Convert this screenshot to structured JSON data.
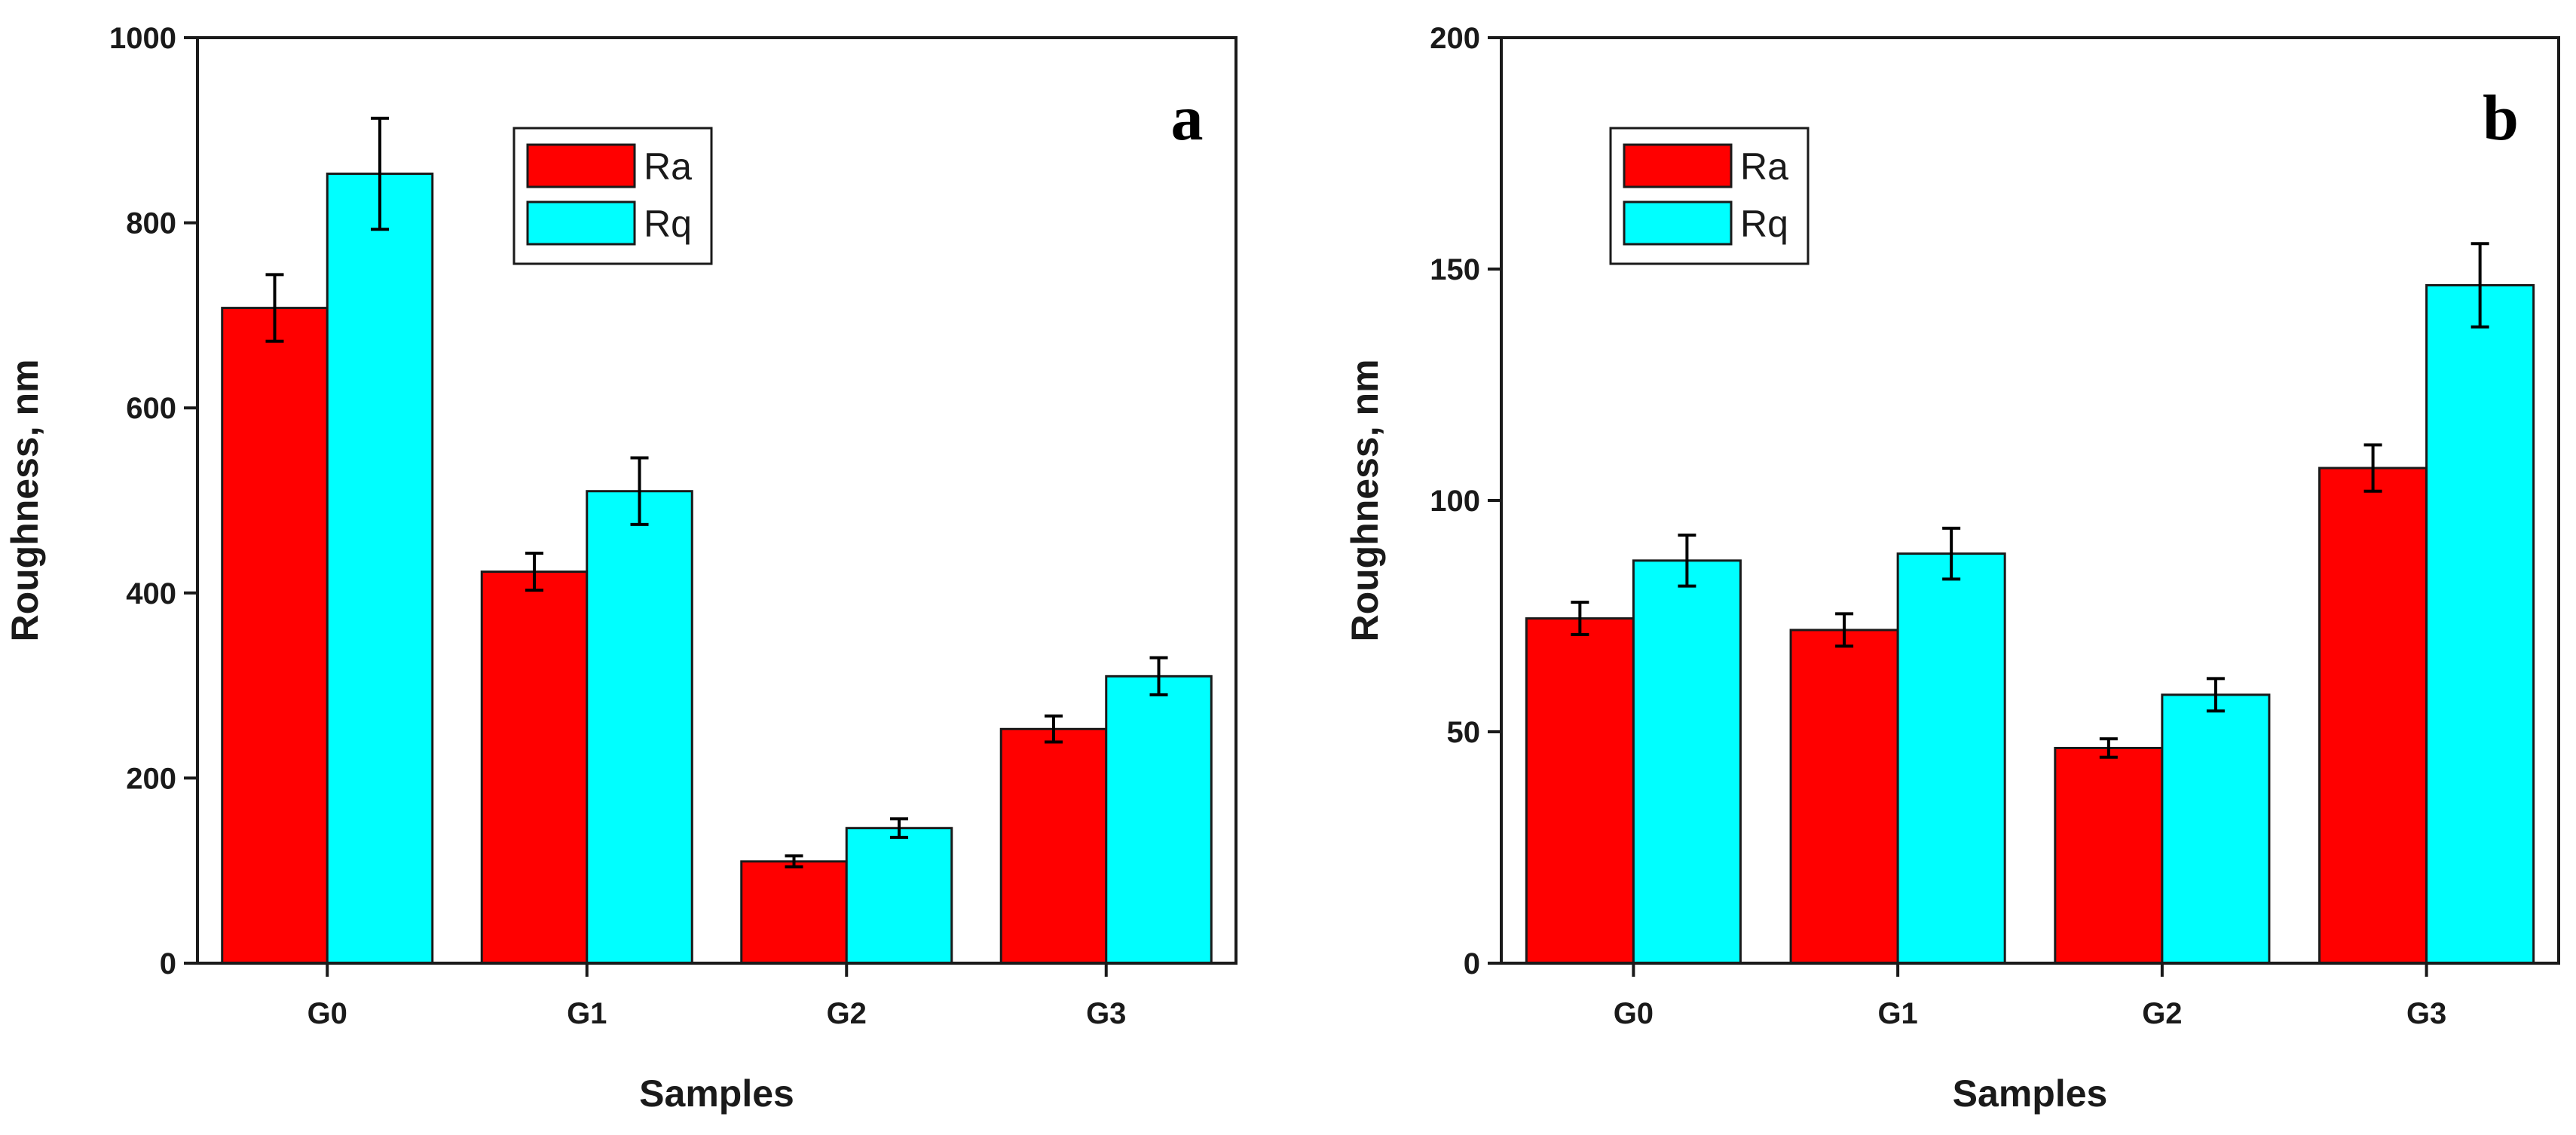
{
  "colors": {
    "Ra": "#ff0000",
    "Rq": "#00ffff",
    "axis": "#1a1a1a",
    "errorbar": "#000000"
  },
  "chart_data": [
    {
      "type": "bar",
      "panel_label": "a",
      "title": "",
      "xlabel": "Samples",
      "ylabel": "Roughness, nm",
      "categories": [
        "G0",
        "G1",
        "G2",
        "G3"
      ],
      "ylim": [
        0,
        1000
      ],
      "yticks": [
        "0",
        "200",
        "400",
        "600",
        "800",
        "1000"
      ],
      "legend_position": "top-center",
      "series": [
        {
          "name": "Ra",
          "values": [
            708,
            423,
            110,
            253
          ],
          "errors": [
            36,
            20,
            6,
            14
          ]
        },
        {
          "name": "Rq",
          "values": [
            853,
            510,
            146,
            310
          ],
          "errors": [
            60,
            36,
            10,
            20
          ]
        }
      ]
    },
    {
      "type": "bar",
      "panel_label": "b",
      "title": "",
      "xlabel": "Samples",
      "ylabel": "Roughness, nm",
      "categories": [
        "G0",
        "G1",
        "G2",
        "G3"
      ],
      "ylim": [
        0,
        200
      ],
      "yticks": [
        "0",
        "50",
        "100",
        "150",
        "200"
      ],
      "legend_position": "top-left",
      "series": [
        {
          "name": "Ra",
          "values": [
            74.5,
            72,
            46.5,
            107
          ],
          "errors": [
            3.5,
            3.5,
            2,
            5
          ]
        },
        {
          "name": "Rq",
          "values": [
            87,
            88.5,
            58,
            146.5
          ],
          "errors": [
            5.5,
            5.5,
            3.5,
            9
          ]
        }
      ]
    }
  ]
}
